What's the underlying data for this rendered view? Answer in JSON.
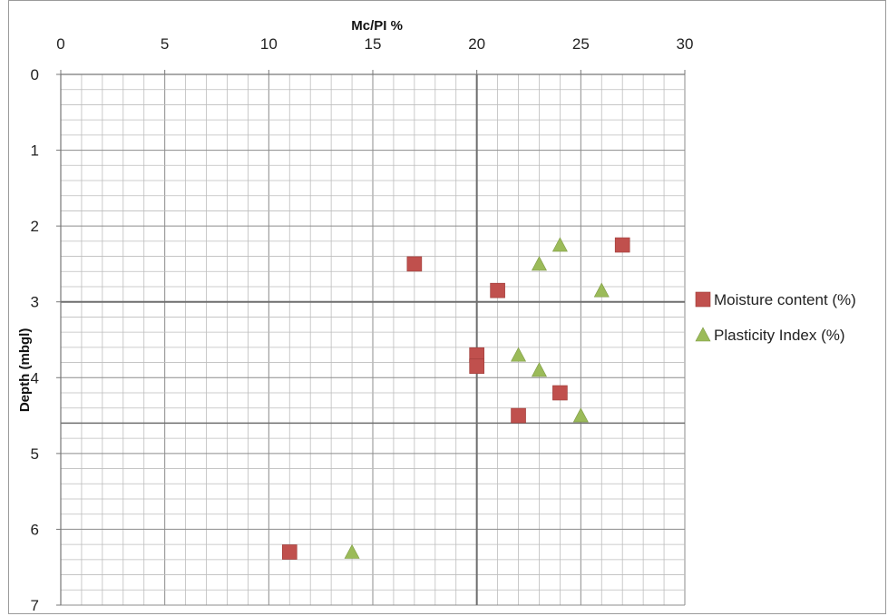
{
  "chart_data": {
    "type": "scatter",
    "xlabel": "Mc/PI  %",
    "ylabel": "Depth (mbgl)",
    "xlim": [
      0,
      30
    ],
    "ylim": [
      0,
      7
    ],
    "x_ticks": [
      0,
      5,
      10,
      15,
      20,
      25,
      30
    ],
    "y_ticks": [
      0,
      1,
      2,
      3,
      4,
      5,
      6,
      7
    ],
    "y_inverted": true,
    "x_axis_position": "top",
    "minor_grid_x": 1,
    "minor_grid_y": 0.2,
    "legend_position": "right",
    "series": [
      {
        "name": "Moisture content (%)",
        "marker": "square",
        "color": "#c0504d",
        "points": [
          {
            "x": 27,
            "y": 2.25
          },
          {
            "x": 17,
            "y": 2.5
          },
          {
            "x": 21,
            "y": 2.85
          },
          {
            "x": 20,
            "y": 3.7
          },
          {
            "x": 20,
            "y": 3.85
          },
          {
            "x": 24,
            "y": 4.2
          },
          {
            "x": 22,
            "y": 4.5
          },
          {
            "x": 11,
            "y": 6.3
          }
        ]
      },
      {
        "name": "Plasticity Index (%)",
        "marker": "triangle",
        "color": "#9bbb59",
        "points": [
          {
            "x": 24,
            "y": 2.25
          },
          {
            "x": 23,
            "y": 2.5
          },
          {
            "x": 26,
            "y": 2.85
          },
          {
            "x": 22,
            "y": 3.7
          },
          {
            "x": 23,
            "y": 3.9
          },
          {
            "x": 25,
            "y": 4.5
          },
          {
            "x": 14,
            "y": 6.3
          }
        ]
      }
    ]
  }
}
